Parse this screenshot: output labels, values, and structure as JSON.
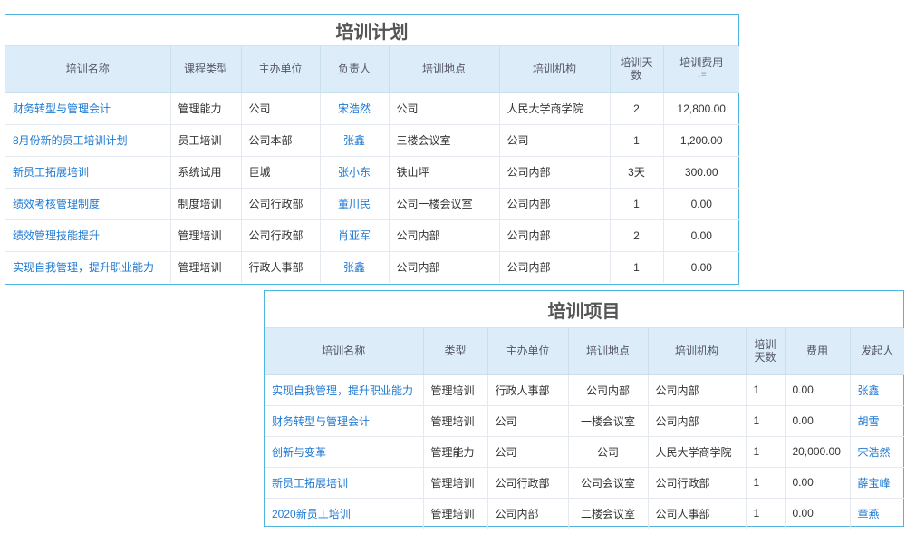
{
  "tables": [
    {
      "title": "培训计划",
      "columns": [
        "培训名称",
        "课程类型",
        "主办单位",
        "负责人",
        "培训地点",
        "培训机构",
        "培训天数",
        "培训费用"
      ],
      "rows": [
        [
          "财务转型与管理会计",
          "管理能力",
          "公司",
          "宋浩然",
          "公司",
          "人民大学商学院",
          "2",
          "12,800.00"
        ],
        [
          "8月份新的员工培训计划",
          "员工培训",
          "公司本部",
          "张鑫",
          "三楼会议室",
          "公司",
          "1",
          "1,200.00"
        ],
        [
          "新员工拓展培训",
          "系统试用",
          "巨城",
          "张小东",
          "铁山坪",
          "公司内部",
          "3天",
          "300.00"
        ],
        [
          "绩效考核管理制度",
          "制度培训",
          "公司行政部",
          "董川民",
          "公司一楼会议室",
          "公司内部",
          "1",
          "0.00"
        ],
        [
          "绩效管理技能提升",
          "管理培训",
          "公司行政部",
          "肖亚军",
          "公司内部",
          "公司内部",
          "2",
          "0.00"
        ],
        [
          "实现自我管理，提升职业能力",
          "管理培训",
          "行政人事部",
          "张鑫",
          "公司内部",
          "公司内部",
          "1",
          "0.00"
        ]
      ]
    },
    {
      "title": "培训项目",
      "columns": [
        "培训名称",
        "类型",
        "主办单位",
        "培训地点",
        "培训机构",
        "培训天数",
        "费用",
        "发起人"
      ],
      "rows": [
        [
          "实现自我管理，提升职业能力",
          "管理培训",
          "行政人事部",
          "公司内部",
          "公司内部",
          "1",
          "0.00",
          "张鑫"
        ],
        [
          "财务转型与管理会计",
          "管理培训",
          "公司",
          "一楼会议室",
          "公司内部",
          "1",
          "0.00",
          "胡雪"
        ],
        [
          "创新与变革",
          "管理能力",
          "公司",
          "公司",
          "人民大学商学院",
          "1",
          "20,000.00",
          "宋浩然"
        ],
        [
          "新员工拓展培训",
          "管理培训",
          "公司行政部",
          "公司会议室",
          "公司行政部",
          "1",
          "0.00",
          "薛宝峰"
        ],
        [
          "2020新员工培训",
          "管理培训",
          "公司内部",
          "二楼会议室",
          "公司人事部",
          "1",
          "0.00",
          "章燕"
        ]
      ]
    }
  ]
}
